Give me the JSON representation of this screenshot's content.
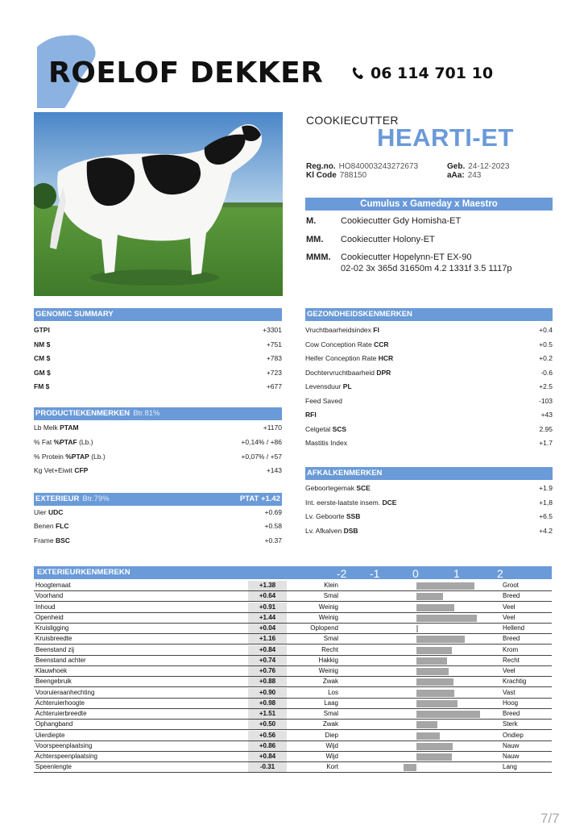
{
  "header": {
    "brand": "ROELOF DEKKER",
    "phone": "06 114 701 10"
  },
  "cow": {
    "prefix": "COOKIECUTTER",
    "name": "HEARTI-ET",
    "reg_label": "Reg.no.",
    "reg_value": "HO840003243272673",
    "birth_label": "Geb.",
    "birth_value": "24-12-2023",
    "kl_label": "Kl Code",
    "kl_value": "788150",
    "aaa_label": "aAa:",
    "aaa_value": "243",
    "pedigree": "Cumulus x Gameday x Maestro",
    "ancestors": [
      {
        "key": "M.",
        "value": "Cookiecutter Gdy Homisha-ET"
      },
      {
        "key": "MM.",
        "value": "Cookiecutter Holony-ET"
      },
      {
        "key": "MMM.",
        "value": "Cookiecutter Hopelynn-ET EX-90"
      }
    ],
    "mmm_record": "02-02 3x 365d 31650m 4.2 1331f 3.5 1117p"
  },
  "genomic": {
    "title": "GENOMIC SUMMARY",
    "rows": [
      {
        "label": "GTPI",
        "value": "+3301"
      },
      {
        "label": "NM $",
        "value": "+751"
      },
      {
        "label": "CM $",
        "value": "+783"
      },
      {
        "label": "GM $",
        "value": "+723"
      },
      {
        "label": "FM $",
        "value": "+677"
      }
    ]
  },
  "production": {
    "title": "PRODUCTIEKENMERKEN",
    "reliability": "Btr.81%",
    "rows": [
      {
        "label": "Lb Melk",
        "code": "PTAM",
        "value": "+1170"
      },
      {
        "label": "% Fat",
        "code": "%PTAF",
        "suffix": "(Lb.)",
        "value": "+0,14% / +86"
      },
      {
        "label": "% Protein",
        "code": "%PTAP",
        "suffix": "(Lb.)",
        "value": "+0,07% / +57"
      },
      {
        "label": "Kg Vet+Eiwit",
        "code": "CFP",
        "value": "+143"
      }
    ]
  },
  "exterior": {
    "title": "EXTERIEUR",
    "reliability": "Btr.79%",
    "ptat": "PTAT +1.42",
    "rows": [
      {
        "label": "Uier",
        "code": "UDC",
        "value": "+0.69"
      },
      {
        "label": "Benen",
        "code": "FLC",
        "value": "+0.58"
      },
      {
        "label": "Frame",
        "code": "BSC",
        "value": "+0.37"
      }
    ]
  },
  "health": {
    "title": "GEZONDHEIDSKENMERKEN",
    "rows": [
      {
        "label": "Vruchtbaarheidsindex",
        "code": "FI",
        "value": "+0.4"
      },
      {
        "label": "Cow Conception Rate",
        "code": "CCR",
        "value": "+0.5"
      },
      {
        "label": "Heifer Conception Rate",
        "code": "HCR",
        "value": "+0.2"
      },
      {
        "label": "Dochtervruchtbaarheid",
        "code": "DPR",
        "value": "-0.6"
      },
      {
        "label": "Levensduur",
        "code": "PL",
        "value": "+2.5"
      },
      {
        "label": "Feed Saved",
        "code": "",
        "value": "-103"
      },
      {
        "label": "",
        "code": "RFI",
        "value": "+43"
      },
      {
        "label": "Celgetal",
        "code": "SCS",
        "value": "2.95"
      },
      {
        "label": "Mastitis Index",
        "code": "",
        "value": "+1.7"
      }
    ]
  },
  "calving": {
    "title": "AFKALKENMERKEN",
    "rows": [
      {
        "label": "Geboortegemak",
        "code": "SCE",
        "value": "+1.9"
      },
      {
        "label": "Int. eerste-laatste insem.",
        "code": "DCE",
        "value": "+1,8"
      },
      {
        "label": "Lv. Geboorte",
        "code": "SSB",
        "value": "+6.5"
      },
      {
        "label": "Lv. Afkalven",
        "code": "DSB",
        "value": "+4.2"
      }
    ]
  },
  "linear": {
    "title": "EXTERIEURKENMEREKN",
    "scale": [
      "-2",
      "-1",
      "0",
      "1",
      "2"
    ],
    "traits": [
      {
        "name": "Hoogtemaat",
        "value": "+1.38",
        "low": "Klein",
        "high": "Groot"
      },
      {
        "name": "Voorhand",
        "value": "+0.64",
        "low": "Smal",
        "high": "Breed"
      },
      {
        "name": "Inhoud",
        "value": "+0.91",
        "low": "Weinig",
        "high": "Veel"
      },
      {
        "name": "Openheid",
        "value": "+1.44",
        "low": "Weinig",
        "high": "Veel"
      },
      {
        "name": "Kruisligging",
        "value": "+0.04",
        "low": "Oplopend",
        "high": "Hellend"
      },
      {
        "name": "Kruisbreedte",
        "value": "+1.16",
        "low": "Smal",
        "high": "Breed"
      },
      {
        "name": "Beenstand zij",
        "value": "+0.84",
        "low": "Recht",
        "high": "Krom"
      },
      {
        "name": "Beenstand achter",
        "value": "+0.74",
        "low": "Hakkig",
        "high": "Recht"
      },
      {
        "name": "Klauwhoek",
        "value": "+0.76",
        "low": "Weinig",
        "high": "Veel"
      },
      {
        "name": "Beengebruik",
        "value": "+0.88",
        "low": "Zwak",
        "high": "Krachtig"
      },
      {
        "name": "Vooruieraanhechting",
        "value": "+0.90",
        "low": "Los",
        "high": "Vast"
      },
      {
        "name": "Achteruierhoogte",
        "value": "+0.98",
        "low": "Laag",
        "high": "Hoog"
      },
      {
        "name": "Achteruierbreedte",
        "value": "+1.51",
        "low": "Smal",
        "high": "Breed"
      },
      {
        "name": "Ophangband",
        "value": "+0.50",
        "low": "Zwak",
        "high": "Sterk"
      },
      {
        "name": "Uierdiepte",
        "value": "+0.56",
        "low": "Diep",
        "high": "Ondiep"
      },
      {
        "name": "Voorspeenplaatsing",
        "value": "+0.86",
        "low": "Wijd",
        "high": "Nauw"
      },
      {
        "name": "Achterspeenplaatsing",
        "value": "+0.84",
        "low": "Wijd",
        "high": "Nauw"
      },
      {
        "name": "Speenlengte",
        "value": "-0.31",
        "low": "Kort",
        "high": "Lang"
      }
    ]
  },
  "page": "7/7",
  "colors": {
    "accent": "#6a9ad8",
    "bar": "#a6a6a6",
    "value_cell": "#e2e2e2"
  }
}
